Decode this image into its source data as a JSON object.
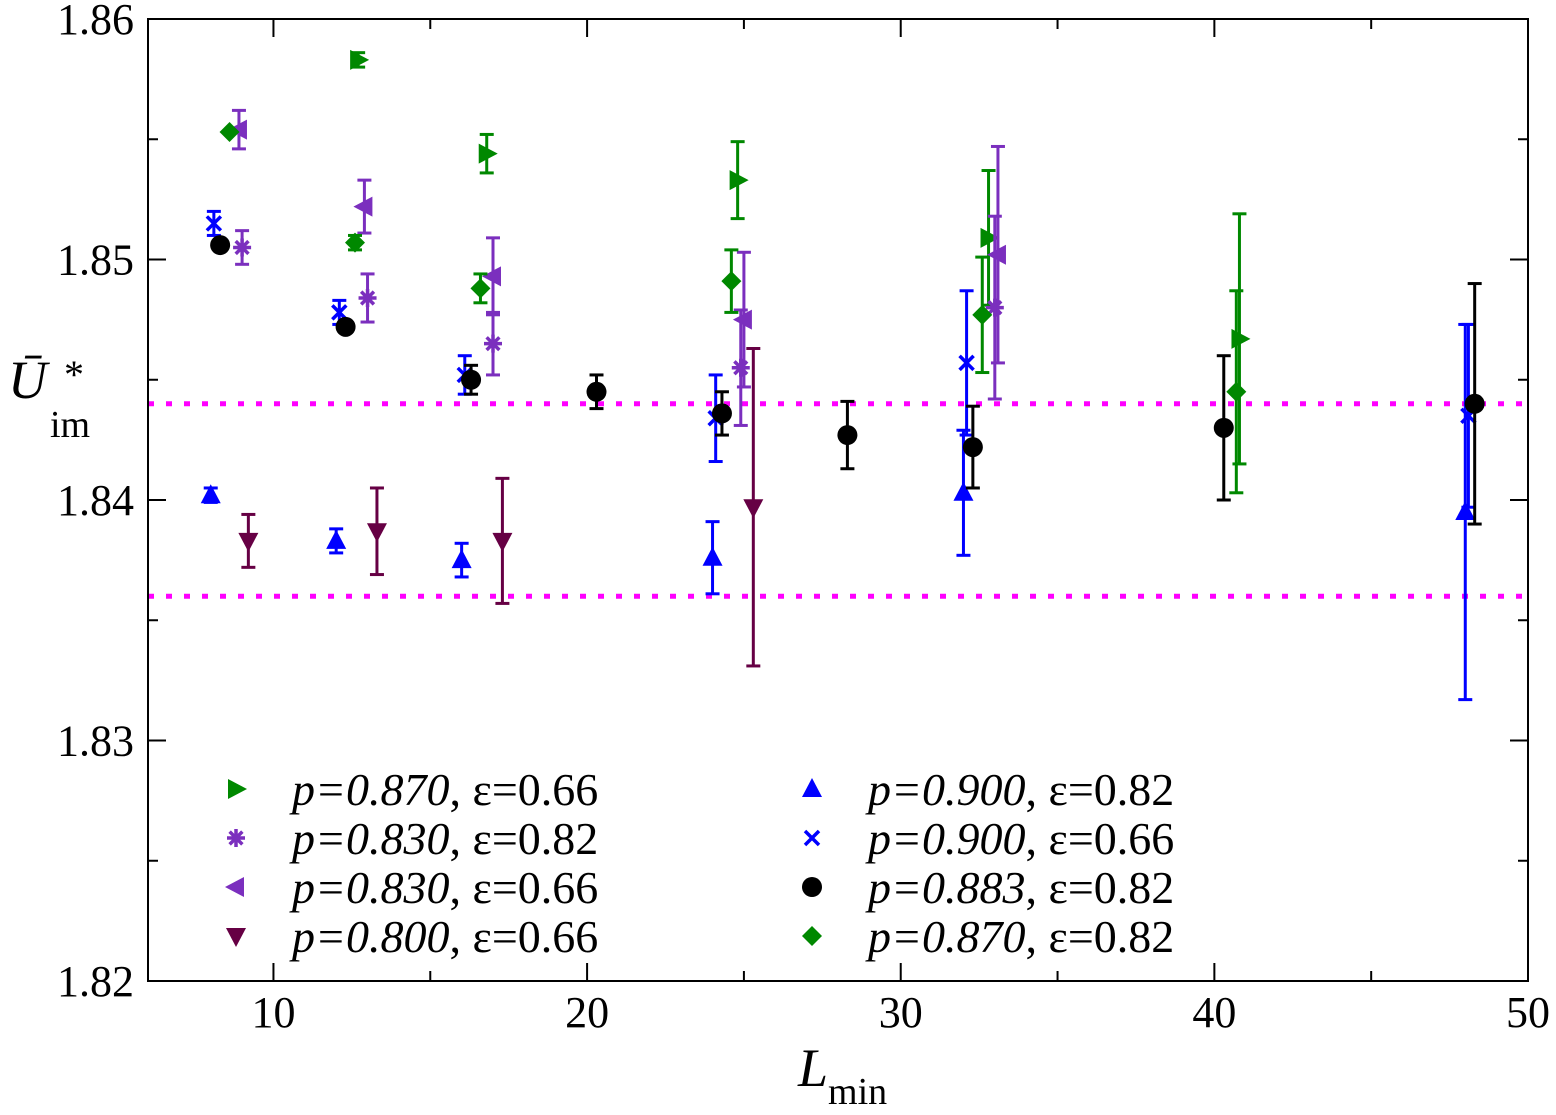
{
  "chart_data": {
    "type": "scatter",
    "title": "",
    "xlabel": {
      "main": "L",
      "sub": "min"
    },
    "ylabel": {
      "main": "Ū",
      "sup": "*",
      "sub": "im"
    },
    "xlim": [
      6,
      50
    ],
    "ylim": [
      1.82,
      1.86
    ],
    "xticks": [
      10,
      20,
      30,
      40,
      50
    ],
    "xtick_labels": [
      "10",
      "20",
      "30",
      "40",
      "50"
    ],
    "yticks": [
      1.82,
      1.83,
      1.84,
      1.85,
      1.86
    ],
    "ytick_labels": [
      "1.82",
      "1.83",
      "1.84",
      "1.85",
      "1.86"
    ],
    "grid": false,
    "legend_position": "bottom",
    "reference_lines": [
      {
        "y": 1.844,
        "color": "#ff00ff",
        "style": "dotted"
      },
      {
        "y": 1.836,
        "color": "#ff00ff",
        "style": "dotted"
      }
    ],
    "series": [
      {
        "p": "p=0.870",
        "eps": ", ε=0.66",
        "marker": "triangle-right",
        "color": "#008800",
        "points": [
          [
            12.7,
            1.8583,
            0.0003
          ],
          [
            16.8,
            1.8544,
            0.0008
          ],
          [
            24.8,
            1.8533,
            0.0016
          ],
          [
            32.8,
            1.8509,
            0.0028
          ],
          [
            40.8,
            1.8467,
            0.0052
          ]
        ]
      },
      {
        "p": "p=0.830",
        "eps": ", ε=0.82",
        "marker": "star",
        "color": "#7b2fbe",
        "points": [
          [
            9.0,
            1.8505,
            0.0007
          ],
          [
            13.0,
            1.8484,
            0.001
          ],
          [
            17.0,
            1.8465,
            0.0013
          ],
          [
            24.9,
            1.8455,
            0.0024
          ],
          [
            33.0,
            1.848,
            0.0038
          ]
        ]
      },
      {
        "p": "p=0.830",
        "eps": ", ε=0.66",
        "marker": "triangle-left",
        "color": "#7b2fbe",
        "points": [
          [
            8.9,
            1.8554,
            0.0008
          ],
          [
            12.9,
            1.8522,
            0.0011
          ],
          [
            17.0,
            1.8493,
            0.0016
          ],
          [
            25.0,
            1.8475,
            0.0028
          ],
          [
            33.1,
            1.8502,
            0.0045
          ]
        ]
      },
      {
        "p": "p=0.800",
        "eps": ", ε=0.66",
        "marker": "triangle-down",
        "color": "#660044",
        "points": [
          [
            9.2,
            1.8383,
            0.0011
          ],
          [
            13.3,
            1.8387,
            0.0018
          ],
          [
            17.3,
            1.8383,
            0.0026
          ],
          [
            25.3,
            1.8397,
            0.0066
          ]
        ]
      },
      {
        "p": "p=0.900",
        "eps": ", ε=0.82",
        "marker": "triangle-up",
        "color": "#0000ff",
        "points": [
          [
            8.0,
            1.8402,
            0.0003
          ],
          [
            12.0,
            1.8383,
            0.0005
          ],
          [
            16.0,
            1.8375,
            0.0007
          ],
          [
            24.0,
            1.8376,
            0.0015
          ],
          [
            32.0,
            1.8403,
            0.0026
          ],
          [
            48.0,
            1.8395,
            0.0078
          ]
        ]
      },
      {
        "p": "p=0.900",
        "eps": ", ε=0.66",
        "marker": "x",
        "color": "#0000ff",
        "points": [
          [
            8.1,
            1.8515,
            0.0005
          ],
          [
            12.1,
            1.8478,
            0.0005
          ],
          [
            16.1,
            1.8452,
            0.0008
          ],
          [
            24.1,
            1.8434,
            0.0018
          ],
          [
            32.1,
            1.8457,
            0.003
          ],
          [
            48.1,
            1.8435,
            0.0038
          ]
        ]
      },
      {
        "p": "p=0.883",
        "eps": ", ε=0.82",
        "marker": "circle",
        "color": "#000000",
        "points": [
          [
            8.3,
            1.8506,
            0.0
          ],
          [
            12.3,
            1.8472,
            0.0
          ],
          [
            16.3,
            1.845,
            0.0006
          ],
          [
            20.3,
            1.8445,
            0.0007
          ],
          [
            24.3,
            1.8436,
            0.0009
          ],
          [
            28.3,
            1.8427,
            0.0014
          ],
          [
            32.3,
            1.8422,
            0.0017
          ],
          [
            40.3,
            1.843,
            0.003
          ],
          [
            48.3,
            1.844,
            0.005
          ]
        ]
      },
      {
        "p": "p=0.870",
        "eps": ", ε=0.82",
        "marker": "diamond",
        "color": "#008800",
        "points": [
          [
            8.6,
            1.8553,
            0.0
          ],
          [
            12.6,
            1.8507,
            0.0003
          ],
          [
            16.6,
            1.8488,
            0.0006
          ],
          [
            24.6,
            1.8491,
            0.0013
          ],
          [
            32.6,
            1.8477,
            0.0024
          ],
          [
            40.7,
            1.8445,
            0.0042
          ]
        ]
      }
    ]
  }
}
